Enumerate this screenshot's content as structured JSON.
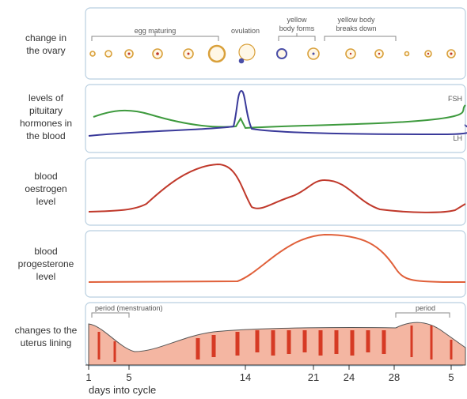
{
  "rows": [
    {
      "label": [
        "change in",
        "the ovary"
      ]
    },
    {
      "label": [
        "levels of",
        "pituitary",
        "hormones in",
        "the blood"
      ]
    },
    {
      "label": [
        "blood",
        "oestrogen",
        "level"
      ]
    },
    {
      "label": [
        "blood",
        "progesterone",
        "level"
      ]
    },
    {
      "label": [
        "changes to the",
        "uterus lining"
      ]
    }
  ],
  "ovary": {
    "egg_maturing": "egg maturing",
    "ovulation": "ovulation",
    "yellow_body_forms": [
      "yellow",
      "body forms"
    ],
    "yellow_body_breaks_down": [
      "yellow body",
      "breaks down"
    ]
  },
  "hormones": {
    "fsh": "FSH",
    "lh": "LH"
  },
  "uterus": {
    "period_start": "period (menstruation)",
    "period_end": "period"
  },
  "axis": {
    "ticks": [
      "1",
      "5",
      "14",
      "21",
      "24",
      "28",
      "5"
    ],
    "title": "days into cycle"
  }
}
